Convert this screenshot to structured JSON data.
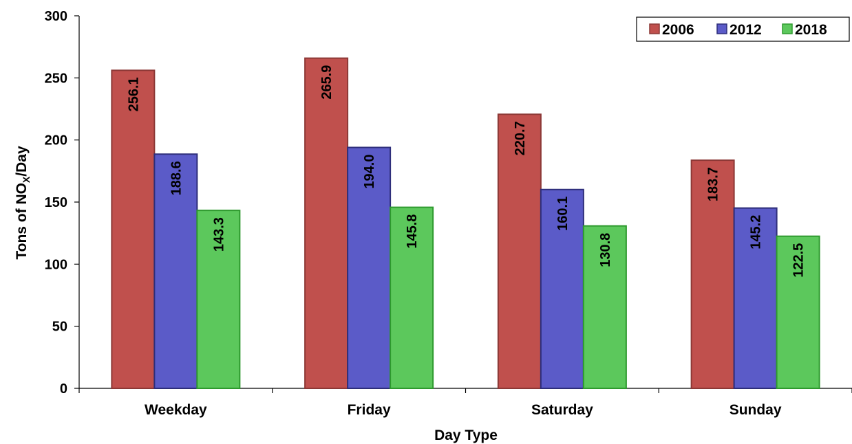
{
  "chart_data": {
    "type": "bar",
    "title": "",
    "xlabel": "Day Type",
    "ylabel_main": "Tons of NO",
    "ylabel_sub": "X",
    "ylabel_tail": "/Day",
    "categories": [
      "Weekday",
      "Friday",
      "Saturday",
      "Sunday"
    ],
    "series": [
      {
        "name": "2006",
        "values": [
          256.1,
          265.9,
          220.7,
          183.7
        ],
        "fill": "#C0504D",
        "stroke": "#8C3836"
      },
      {
        "name": "2012",
        "values": [
          188.6,
          194.0,
          160.1,
          145.2
        ],
        "fill": "#5B5BC8",
        "stroke": "#2E2E7A"
      },
      {
        "name": "2018",
        "values": [
          143.3,
          145.8,
          130.8,
          122.5
        ],
        "fill": "#5CC85C",
        "stroke": "#2E9A2E"
      }
    ],
    "ylim": [
      0,
      300
    ],
    "yticks": [
      0,
      50,
      100,
      150,
      200,
      250,
      300
    ],
    "legend_position": "top-right",
    "grid": false
  }
}
